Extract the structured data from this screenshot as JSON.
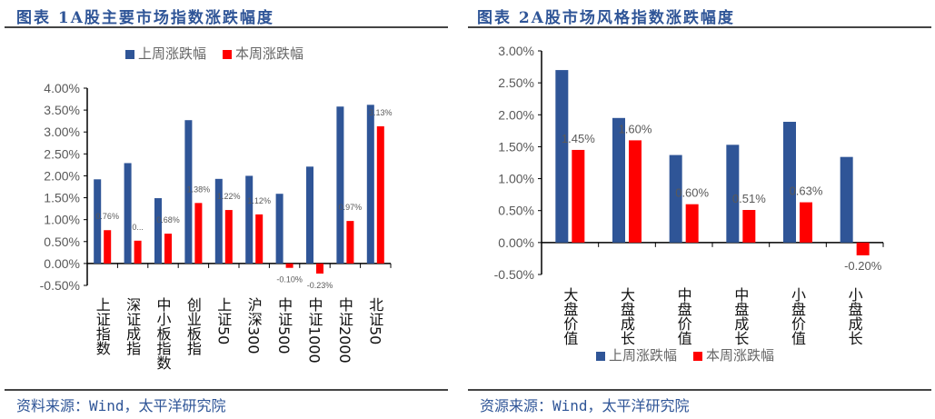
{
  "charts": [
    {
      "title": "图表 1A股主要市场指数涨跌幅度",
      "source": "资料来源：Wind，太平洋研究院",
      "legend": [
        "上周涨跌幅",
        "本周涨跌幅"
      ],
      "y_ticks": [
        "4.00%",
        "3.50%",
        "3.00%",
        "2.50%",
        "2.00%",
        "1.50%",
        "1.00%",
        "0.50%",
        "0.00%",
        "-0.50%"
      ],
      "red_labels": [
        "0.76%",
        "0...",
        "0.68%",
        "1.38%",
        "1.22%",
        "1.12%",
        "-0.10%",
        "-0.23%",
        "0.97%",
        "3.13%"
      ]
    },
    {
      "title": "图表 2A股市场风格指数涨跌幅度",
      "source": "资源来源：Wind，太平洋研究院",
      "legend": [
        "上周涨跌幅",
        "本周涨跌幅"
      ],
      "y_ticks": [
        "3.00%",
        "2.50%",
        "2.00%",
        "1.50%",
        "1.00%",
        "0.50%",
        "0.00%",
        "-0.50%"
      ],
      "red_labels": [
        "1.45%",
        "1.60%",
        "0.60%",
        "0.51%",
        "0.63%",
        "-0.20%"
      ]
    }
  ],
  "chart_data": [
    {
      "type": "bar",
      "title": "图表 1A股主要市场指数涨跌幅度",
      "categories": [
        "上证指数",
        "深证成指",
        "中小板指数",
        "创业板指",
        "上证50",
        "沪深300",
        "中证500",
        "中证1000",
        "中证2000",
        "北证50"
      ],
      "series": [
        {
          "name": "上周涨跌幅",
          "color": "#2f5597",
          "values": [
            1.92,
            2.29,
            1.49,
            3.27,
            1.93,
            2.0,
            1.59,
            2.21,
            3.58,
            3.62
          ]
        },
        {
          "name": "本周涨跌幅",
          "color": "#ff0000",
          "values": [
            0.76,
            0.52,
            0.68,
            1.38,
            1.22,
            1.12,
            -0.1,
            -0.23,
            0.97,
            3.13
          ]
        }
      ],
      "ylim": [
        -0.5,
        4.0
      ],
      "unit": "%",
      "legend_position": "top"
    },
    {
      "type": "bar",
      "title": "图表 2A股市场风格指数涨跌幅度",
      "categories": [
        "大盘价值",
        "大盘成长",
        "中盘价值",
        "中盘成长",
        "小盘价值",
        "小盘成长"
      ],
      "series": [
        {
          "name": "上周涨跌幅",
          "color": "#2f5597",
          "values": [
            2.7,
            1.95,
            1.37,
            1.53,
            1.89,
            1.34
          ]
        },
        {
          "name": "本周涨跌幅",
          "color": "#ff0000",
          "values": [
            1.45,
            1.6,
            0.6,
            0.51,
            0.63,
            -0.2
          ]
        }
      ],
      "ylim": [
        -0.5,
        3.0
      ],
      "unit": "%",
      "legend_position": "bottom"
    }
  ]
}
